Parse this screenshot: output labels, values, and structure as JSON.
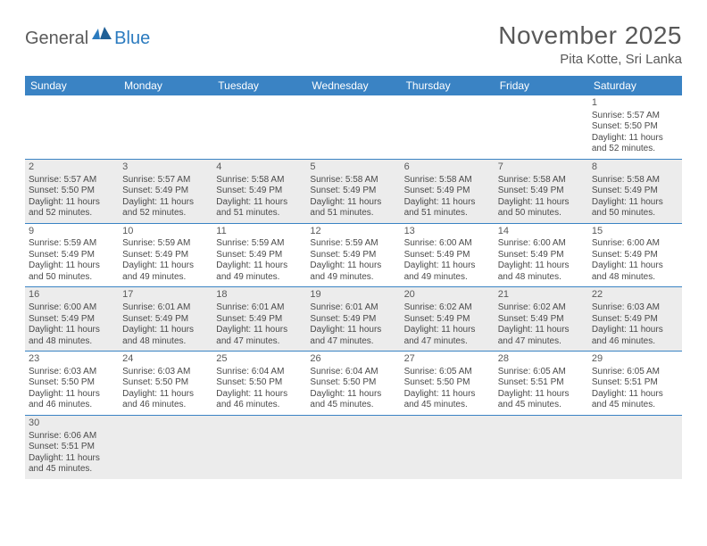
{
  "colors": {
    "header_bg": "#3a83c4",
    "header_text": "#ffffff",
    "body_text": "#4a4a4a",
    "title_text": "#595959",
    "row_shade": "#ececec",
    "rule": "#3a83c4",
    "logo_gray": "#5a5a5a",
    "logo_blue": "#2b7bbf"
  },
  "logo": {
    "general": "General",
    "blue": "Blue"
  },
  "title": "November 2025",
  "location": "Pita Kotte, Sri Lanka",
  "weekdays": [
    "Sunday",
    "Monday",
    "Tuesday",
    "Wednesday",
    "Thursday",
    "Friday",
    "Saturday"
  ],
  "weeks": [
    {
      "shaded": false,
      "cells": [
        {
          "empty": true
        },
        {
          "empty": true
        },
        {
          "empty": true
        },
        {
          "empty": true
        },
        {
          "empty": true
        },
        {
          "empty": true
        },
        {
          "day": "1",
          "sunrise": "Sunrise: 5:57 AM",
          "sunset": "Sunset: 5:50 PM",
          "dl1": "Daylight: 11 hours",
          "dl2": "and 52 minutes."
        }
      ]
    },
    {
      "shaded": true,
      "cells": [
        {
          "day": "2",
          "sunrise": "Sunrise: 5:57 AM",
          "sunset": "Sunset: 5:50 PM",
          "dl1": "Daylight: 11 hours",
          "dl2": "and 52 minutes."
        },
        {
          "day": "3",
          "sunrise": "Sunrise: 5:57 AM",
          "sunset": "Sunset: 5:49 PM",
          "dl1": "Daylight: 11 hours",
          "dl2": "and 52 minutes."
        },
        {
          "day": "4",
          "sunrise": "Sunrise: 5:58 AM",
          "sunset": "Sunset: 5:49 PM",
          "dl1": "Daylight: 11 hours",
          "dl2": "and 51 minutes."
        },
        {
          "day": "5",
          "sunrise": "Sunrise: 5:58 AM",
          "sunset": "Sunset: 5:49 PM",
          "dl1": "Daylight: 11 hours",
          "dl2": "and 51 minutes."
        },
        {
          "day": "6",
          "sunrise": "Sunrise: 5:58 AM",
          "sunset": "Sunset: 5:49 PM",
          "dl1": "Daylight: 11 hours",
          "dl2": "and 51 minutes."
        },
        {
          "day": "7",
          "sunrise": "Sunrise: 5:58 AM",
          "sunset": "Sunset: 5:49 PM",
          "dl1": "Daylight: 11 hours",
          "dl2": "and 50 minutes."
        },
        {
          "day": "8",
          "sunrise": "Sunrise: 5:58 AM",
          "sunset": "Sunset: 5:49 PM",
          "dl1": "Daylight: 11 hours",
          "dl2": "and 50 minutes."
        }
      ]
    },
    {
      "shaded": false,
      "cells": [
        {
          "day": "9",
          "sunrise": "Sunrise: 5:59 AM",
          "sunset": "Sunset: 5:49 PM",
          "dl1": "Daylight: 11 hours",
          "dl2": "and 50 minutes."
        },
        {
          "day": "10",
          "sunrise": "Sunrise: 5:59 AM",
          "sunset": "Sunset: 5:49 PM",
          "dl1": "Daylight: 11 hours",
          "dl2": "and 49 minutes."
        },
        {
          "day": "11",
          "sunrise": "Sunrise: 5:59 AM",
          "sunset": "Sunset: 5:49 PM",
          "dl1": "Daylight: 11 hours",
          "dl2": "and 49 minutes."
        },
        {
          "day": "12",
          "sunrise": "Sunrise: 5:59 AM",
          "sunset": "Sunset: 5:49 PM",
          "dl1": "Daylight: 11 hours",
          "dl2": "and 49 minutes."
        },
        {
          "day": "13",
          "sunrise": "Sunrise: 6:00 AM",
          "sunset": "Sunset: 5:49 PM",
          "dl1": "Daylight: 11 hours",
          "dl2": "and 49 minutes."
        },
        {
          "day": "14",
          "sunrise": "Sunrise: 6:00 AM",
          "sunset": "Sunset: 5:49 PM",
          "dl1": "Daylight: 11 hours",
          "dl2": "and 48 minutes."
        },
        {
          "day": "15",
          "sunrise": "Sunrise: 6:00 AM",
          "sunset": "Sunset: 5:49 PM",
          "dl1": "Daylight: 11 hours",
          "dl2": "and 48 minutes."
        }
      ]
    },
    {
      "shaded": true,
      "cells": [
        {
          "day": "16",
          "sunrise": "Sunrise: 6:00 AM",
          "sunset": "Sunset: 5:49 PM",
          "dl1": "Daylight: 11 hours",
          "dl2": "and 48 minutes."
        },
        {
          "day": "17",
          "sunrise": "Sunrise: 6:01 AM",
          "sunset": "Sunset: 5:49 PM",
          "dl1": "Daylight: 11 hours",
          "dl2": "and 48 minutes."
        },
        {
          "day": "18",
          "sunrise": "Sunrise: 6:01 AM",
          "sunset": "Sunset: 5:49 PM",
          "dl1": "Daylight: 11 hours",
          "dl2": "and 47 minutes."
        },
        {
          "day": "19",
          "sunrise": "Sunrise: 6:01 AM",
          "sunset": "Sunset: 5:49 PM",
          "dl1": "Daylight: 11 hours",
          "dl2": "and 47 minutes."
        },
        {
          "day": "20",
          "sunrise": "Sunrise: 6:02 AM",
          "sunset": "Sunset: 5:49 PM",
          "dl1": "Daylight: 11 hours",
          "dl2": "and 47 minutes."
        },
        {
          "day": "21",
          "sunrise": "Sunrise: 6:02 AM",
          "sunset": "Sunset: 5:49 PM",
          "dl1": "Daylight: 11 hours",
          "dl2": "and 47 minutes."
        },
        {
          "day": "22",
          "sunrise": "Sunrise: 6:03 AM",
          "sunset": "Sunset: 5:49 PM",
          "dl1": "Daylight: 11 hours",
          "dl2": "and 46 minutes."
        }
      ]
    },
    {
      "shaded": false,
      "cells": [
        {
          "day": "23",
          "sunrise": "Sunrise: 6:03 AM",
          "sunset": "Sunset: 5:50 PM",
          "dl1": "Daylight: 11 hours",
          "dl2": "and 46 minutes."
        },
        {
          "day": "24",
          "sunrise": "Sunrise: 6:03 AM",
          "sunset": "Sunset: 5:50 PM",
          "dl1": "Daylight: 11 hours",
          "dl2": "and 46 minutes."
        },
        {
          "day": "25",
          "sunrise": "Sunrise: 6:04 AM",
          "sunset": "Sunset: 5:50 PM",
          "dl1": "Daylight: 11 hours",
          "dl2": "and 46 minutes."
        },
        {
          "day": "26",
          "sunrise": "Sunrise: 6:04 AM",
          "sunset": "Sunset: 5:50 PM",
          "dl1": "Daylight: 11 hours",
          "dl2": "and 45 minutes."
        },
        {
          "day": "27",
          "sunrise": "Sunrise: 6:05 AM",
          "sunset": "Sunset: 5:50 PM",
          "dl1": "Daylight: 11 hours",
          "dl2": "and 45 minutes."
        },
        {
          "day": "28",
          "sunrise": "Sunrise: 6:05 AM",
          "sunset": "Sunset: 5:51 PM",
          "dl1": "Daylight: 11 hours",
          "dl2": "and 45 minutes."
        },
        {
          "day": "29",
          "sunrise": "Sunrise: 6:05 AM",
          "sunset": "Sunset: 5:51 PM",
          "dl1": "Daylight: 11 hours",
          "dl2": "and 45 minutes."
        }
      ]
    },
    {
      "shaded": true,
      "last": true,
      "cells": [
        {
          "day": "30",
          "sunrise": "Sunrise: 6:06 AM",
          "sunset": "Sunset: 5:51 PM",
          "dl1": "Daylight: 11 hours",
          "dl2": "and 45 minutes."
        },
        {
          "empty": true
        },
        {
          "empty": true
        },
        {
          "empty": true
        },
        {
          "empty": true
        },
        {
          "empty": true
        },
        {
          "empty": true
        }
      ]
    }
  ]
}
